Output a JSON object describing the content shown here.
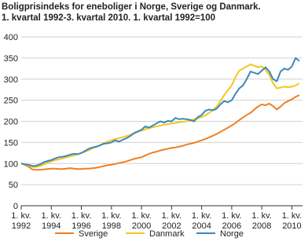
{
  "chart_data": {
    "type": "line",
    "title": "Boligprisindeks for eneboliger i Norge, Sverige og Danmark.",
    "subtitle": "1. kvartal 1992-3. kvartal 2010. 1. kvartal 1992=100",
    "categories": [
      "1. kv. 1992",
      null,
      null,
      null,
      null,
      null,
      null,
      null,
      "1. kv. 1994",
      null,
      null,
      null,
      null,
      null,
      null,
      null,
      "1. kv. 1996",
      null,
      null,
      null,
      null,
      null,
      null,
      null,
      "1. kv. 1998",
      null,
      null,
      null,
      null,
      null,
      null,
      null,
      "1. kv. 2000",
      null,
      null,
      null,
      null,
      null,
      null,
      null,
      "1. kv. 2002",
      null,
      null,
      null,
      null,
      null,
      null,
      null,
      "1. kv. 2004",
      null,
      null,
      null,
      null,
      null,
      null,
      null,
      "1. kv. 2006",
      null,
      null,
      null,
      null,
      null,
      null,
      null,
      "1. kv. 2008",
      null,
      null,
      null,
      null,
      null,
      null,
      null,
      "1. kv. 2010",
      null,
      null
    ],
    "series": [
      {
        "name": "Sverige",
        "color": "#f07f22",
        "values": [
          100,
          97,
          92,
          86,
          85,
          85,
          86,
          87,
          88,
          88,
          87,
          87,
          88,
          89,
          88,
          87,
          87,
          88,
          88,
          89,
          90,
          92,
          94,
          96,
          97,
          99,
          101,
          103,
          105,
          108,
          111,
          113,
          115,
          119,
          123,
          126,
          128,
          131,
          133,
          135,
          137,
          138,
          140,
          142,
          145,
          147,
          149,
          152,
          155,
          158,
          162,
          166,
          170,
          175,
          180,
          185,
          190,
          196,
          203,
          209,
          215,
          220,
          228,
          235,
          240,
          238,
          242,
          236,
          228,
          235,
          243,
          248,
          252,
          258,
          262
        ]
      },
      {
        "name": "Danmark",
        "color": "#f6c61c",
        "values": [
          100,
          98,
          95,
          92,
          92,
          94,
          98,
          102,
          105,
          108,
          110,
          112,
          115,
          117,
          119,
          122,
          125,
          128,
          132,
          136,
          140,
          144,
          148,
          152,
          155,
          158,
          160,
          162,
          165,
          168,
          171,
          175,
          178,
          181,
          184,
          186,
          188,
          190,
          192,
          193,
          195,
          196,
          198,
          199,
          200,
          203,
          205,
          207,
          210,
          214,
          220,
          227,
          235,
          248,
          262,
          274,
          285,
          305,
          320,
          325,
          330,
          335,
          332,
          328,
          330,
          322,
          310,
          290,
          278,
          280,
          282,
          281,
          282,
          285,
          290
        ]
      },
      {
        "name": "Norge",
        "color": "#3b88b9",
        "values": [
          100,
          98,
          97,
          94,
          95,
          98,
          103,
          106,
          108,
          112,
          115,
          116,
          118,
          121,
          123,
          122,
          125,
          130,
          135,
          138,
          140,
          143,
          147,
          148,
          150,
          155,
          152,
          156,
          160,
          165,
          172,
          176,
          180,
          188,
          185,
          190,
          195,
          200,
          197,
          201,
          200,
          208,
          205,
          206,
          205,
          203,
          200,
          210,
          215,
          225,
          228,
          226,
          230,
          240,
          248,
          245,
          250,
          265,
          278,
          285,
          300,
          318,
          315,
          312,
          320,
          328,
          318,
          300,
          295,
          318,
          325,
          322,
          330,
          350,
          343
        ]
      }
    ],
    "ylim": [
      0,
      400
    ],
    "yticks": [
      0,
      50,
      100,
      150,
      200,
      250,
      300,
      350,
      400
    ],
    "grid": true
  }
}
